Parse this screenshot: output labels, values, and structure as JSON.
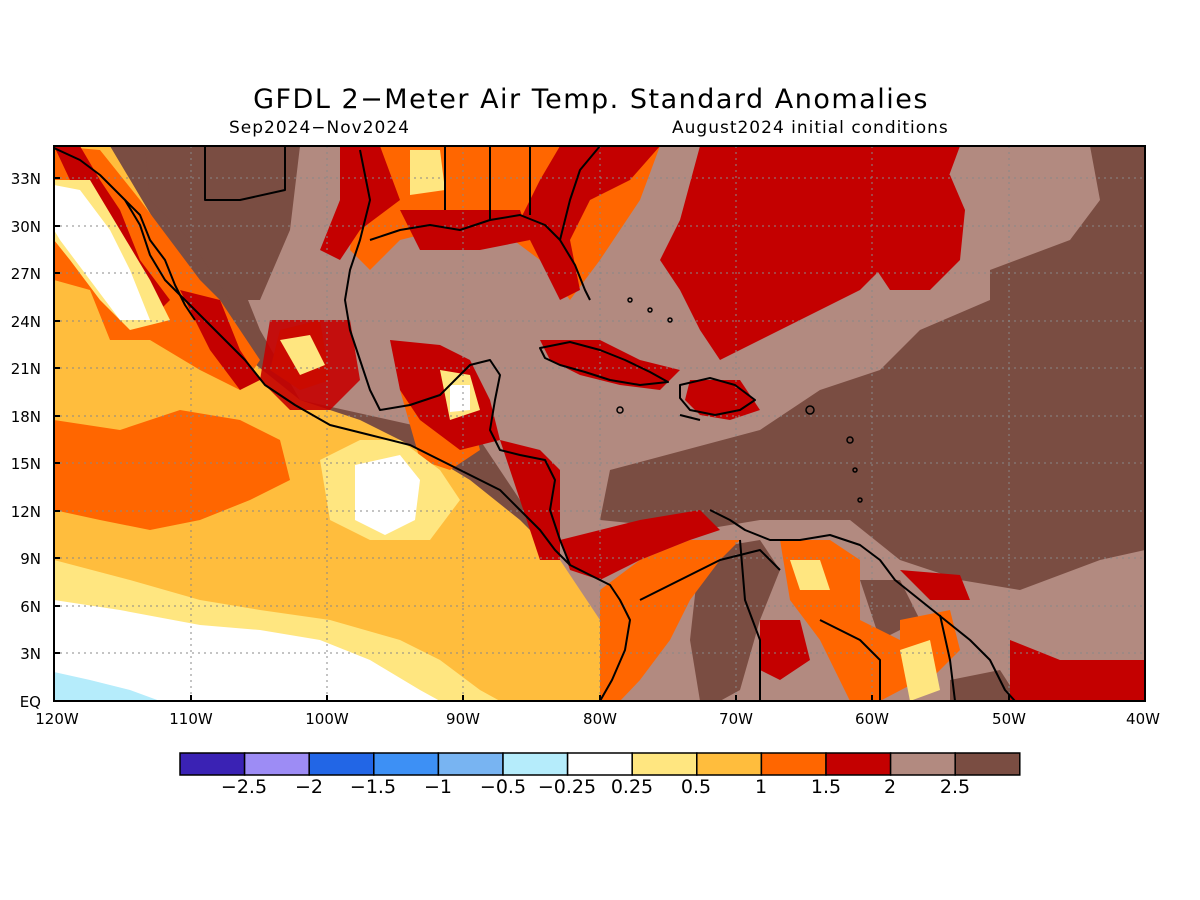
{
  "title": "GFDL 2−Meter Air Temp. Standard Anomalies",
  "subtitle_left": "Sep2024−Nov2024",
  "subtitle_right": "August2024 initial conditions",
  "lat_labels": [
    "33N",
    "30N",
    "27N",
    "24N",
    "21N",
    "18N",
    "15N",
    "12N",
    "9N",
    "6N",
    "3N",
    "EQ"
  ],
  "lon_labels": [
    "120W",
    "110W",
    "100W",
    "90W",
    "80W",
    "70W",
    "60W",
    "50W",
    "40W"
  ],
  "colorbar": {
    "colors": [
      "#3a22b4",
      "#9d8cf5",
      "#2266e6",
      "#3d90f5",
      "#78b4f2",
      "#b5ecfb",
      "#ffffff",
      "#ffe680",
      "#ffbd3d",
      "#ff6600",
      "#c40000",
      "#b28a80",
      "#7a4d42"
    ],
    "labels": [
      "−2.5",
      "−2",
      "−1.5",
      "−1",
      "−0.5",
      "−0.25",
      "0.25",
      "0.5",
      "1",
      "1.5",
      "2",
      "2.5"
    ]
  }
}
